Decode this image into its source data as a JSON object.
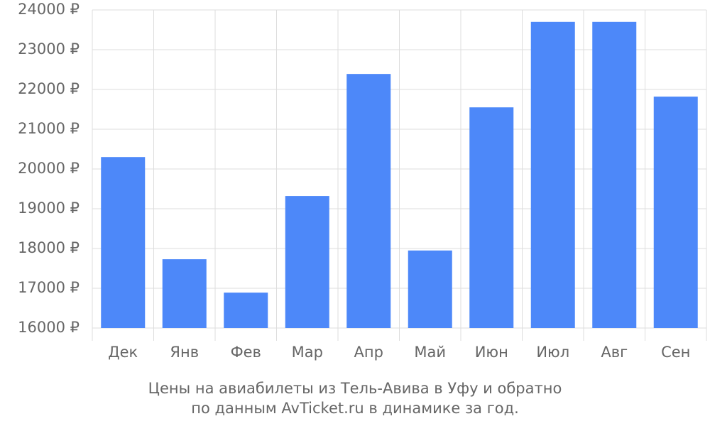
{
  "chart_data": {
    "type": "bar",
    "title": [
      "Цены на авиабилеты из Тель-Авива в Уфу и обратно",
      "по данным AvTicket.ru в динамике за год."
    ],
    "categories": [
      "Дек",
      "Янв",
      "Фев",
      "Мар",
      "Апр",
      "Май",
      "Июн",
      "Июл",
      "Авг",
      "Сен"
    ],
    "values": [
      20300,
      17730,
      16890,
      19320,
      22390,
      17950,
      21550,
      23700,
      23700,
      21820
    ],
    "color": "#4d88f9",
    "ylim": [
      16000,
      24000
    ],
    "yticks": [
      {
        "value": 16000,
        "label": "16000 ₽"
      },
      {
        "value": 17000,
        "label": "17000 ₽"
      },
      {
        "value": 18000,
        "label": "18000 ₽"
      },
      {
        "value": 19000,
        "label": "19000 ₽"
      },
      {
        "value": 20000,
        "label": "20000 ₽"
      },
      {
        "value": 21000,
        "label": "21000 ₽"
      },
      {
        "value": 22000,
        "label": "22000 ₽"
      },
      {
        "value": 23000,
        "label": "23000 ₽"
      },
      {
        "value": 24000,
        "label": "24000 ₽"
      }
    ],
    "grid": true
  }
}
